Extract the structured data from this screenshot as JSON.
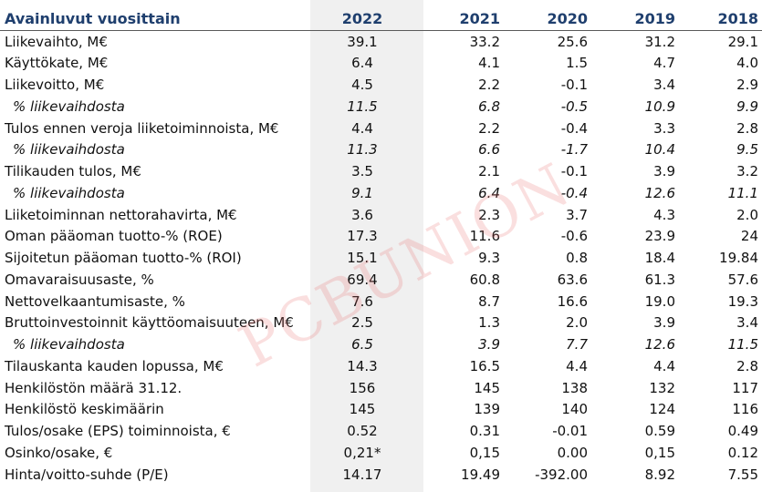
{
  "header": {
    "label": "Avainluvut vuosittain",
    "years": [
      "2022",
      "2021",
      "2020",
      "2019",
      "2018"
    ]
  },
  "rows": [
    {
      "label": "Liikevaihto, M€",
      "italic": false,
      "values": [
        "39.1",
        "33.2",
        "25.6",
        "31.2",
        "29.1"
      ]
    },
    {
      "label": "Käyttökate, M€",
      "italic": false,
      "values": [
        "6.4",
        "4.1",
        "1.5",
        "4.7",
        "4.0"
      ]
    },
    {
      "label": "Liikevoitto, M€",
      "italic": false,
      "values": [
        "4.5",
        "2.2",
        "-0.1",
        "3.4",
        "2.9"
      ]
    },
    {
      "label": "% liikevaihdosta",
      "italic": true,
      "values": [
        "11.5",
        "6.8",
        "-0.5",
        "10.9",
        "9.9"
      ]
    },
    {
      "label": "Tulos ennen veroja liiketoiminnoista, M€",
      "italic": false,
      "values": [
        "4.4",
        "2.2",
        "-0.4",
        "3.3",
        "2.8"
      ]
    },
    {
      "label": "% liikevaihdosta",
      "italic": true,
      "values": [
        "11.3",
        "6.6",
        "-1.7",
        "10.4",
        "9.5"
      ]
    },
    {
      "label": "Tilikauden tulos, M€",
      "italic": false,
      "values": [
        "3.5",
        "2.1",
        "-0.1",
        "3.9",
        "3.2"
      ]
    },
    {
      "label": "% liikevaihdosta",
      "italic": true,
      "values": [
        "9.1",
        "6.4",
        "-0.4",
        "12.6",
        "11.1"
      ]
    },
    {
      "label": "Liiketoiminnan nettorahavirta, M€",
      "italic": false,
      "values": [
        "3.6",
        "2.3",
        "3.7",
        "4.3",
        "2.0"
      ]
    },
    {
      "label": "Oman pääoman tuotto-% (ROE)",
      "italic": false,
      "values": [
        "17.3",
        "11.6",
        "-0.6",
        "23.9",
        "24"
      ]
    },
    {
      "label": "Sijoitetun pääoman tuotto-% (ROI)",
      "italic": false,
      "values": [
        "15.1",
        "9.3",
        "0.8",
        "18.4",
        "19.84"
      ]
    },
    {
      "label": "Omavaraisuusaste, %",
      "italic": false,
      "values": [
        "69.4",
        "60.8",
        "63.6",
        "61.3",
        "57.6"
      ]
    },
    {
      "label": "Nettovelkaantumisaste, %",
      "italic": false,
      "values": [
        "7.6",
        "8.7",
        "16.6",
        "19.0",
        "19.3"
      ]
    },
    {
      "label": "Bruttoinvestoinnit käyttöomaisuuteen, M€",
      "italic": false,
      "values": [
        "2.5",
        "1.3",
        "2.0",
        "3.9",
        "3.4"
      ]
    },
    {
      "label": "% liikevaihdosta",
      "italic": true,
      "values": [
        "6.5",
        "3.9",
        "7.7",
        "12.6",
        "11.5"
      ]
    },
    {
      "label": "Tilauskanta kauden lopussa, M€",
      "italic": false,
      "values": [
        "14.3",
        "16.5",
        "4.4",
        "4.4",
        "2.8"
      ]
    },
    {
      "label": "Henkilöstön määrä 31.12.",
      "italic": false,
      "values": [
        "156",
        "145",
        "138",
        "132",
        "117"
      ]
    },
    {
      "label": "Henkilöstö keskimäärin",
      "italic": false,
      "values": [
        "145",
        "139",
        "140",
        "124",
        "116"
      ]
    },
    {
      "label": "Tulos/osake (EPS) toiminnoista, €",
      "italic": false,
      "values": [
        "0.52",
        "0.31",
        "-0.01",
        "0.59",
        "0.49"
      ]
    },
    {
      "label": "Osinko/osake, €",
      "italic": false,
      "values": [
        "0,21*",
        "0,15",
        "0.00",
        "0,15",
        "0.12"
      ]
    },
    {
      "label": "Hinta/voitto-suhde (P/E)",
      "italic": false,
      "values": [
        "14.17",
        "19.49",
        "-392.00",
        "8.92",
        "7.55"
      ]
    }
  ],
  "watermark": "PCBUNION",
  "colors": {
    "header_text": "#1f3f6e",
    "highlight_column": "#f0f0f0",
    "watermark": "#e66e6e"
  }
}
